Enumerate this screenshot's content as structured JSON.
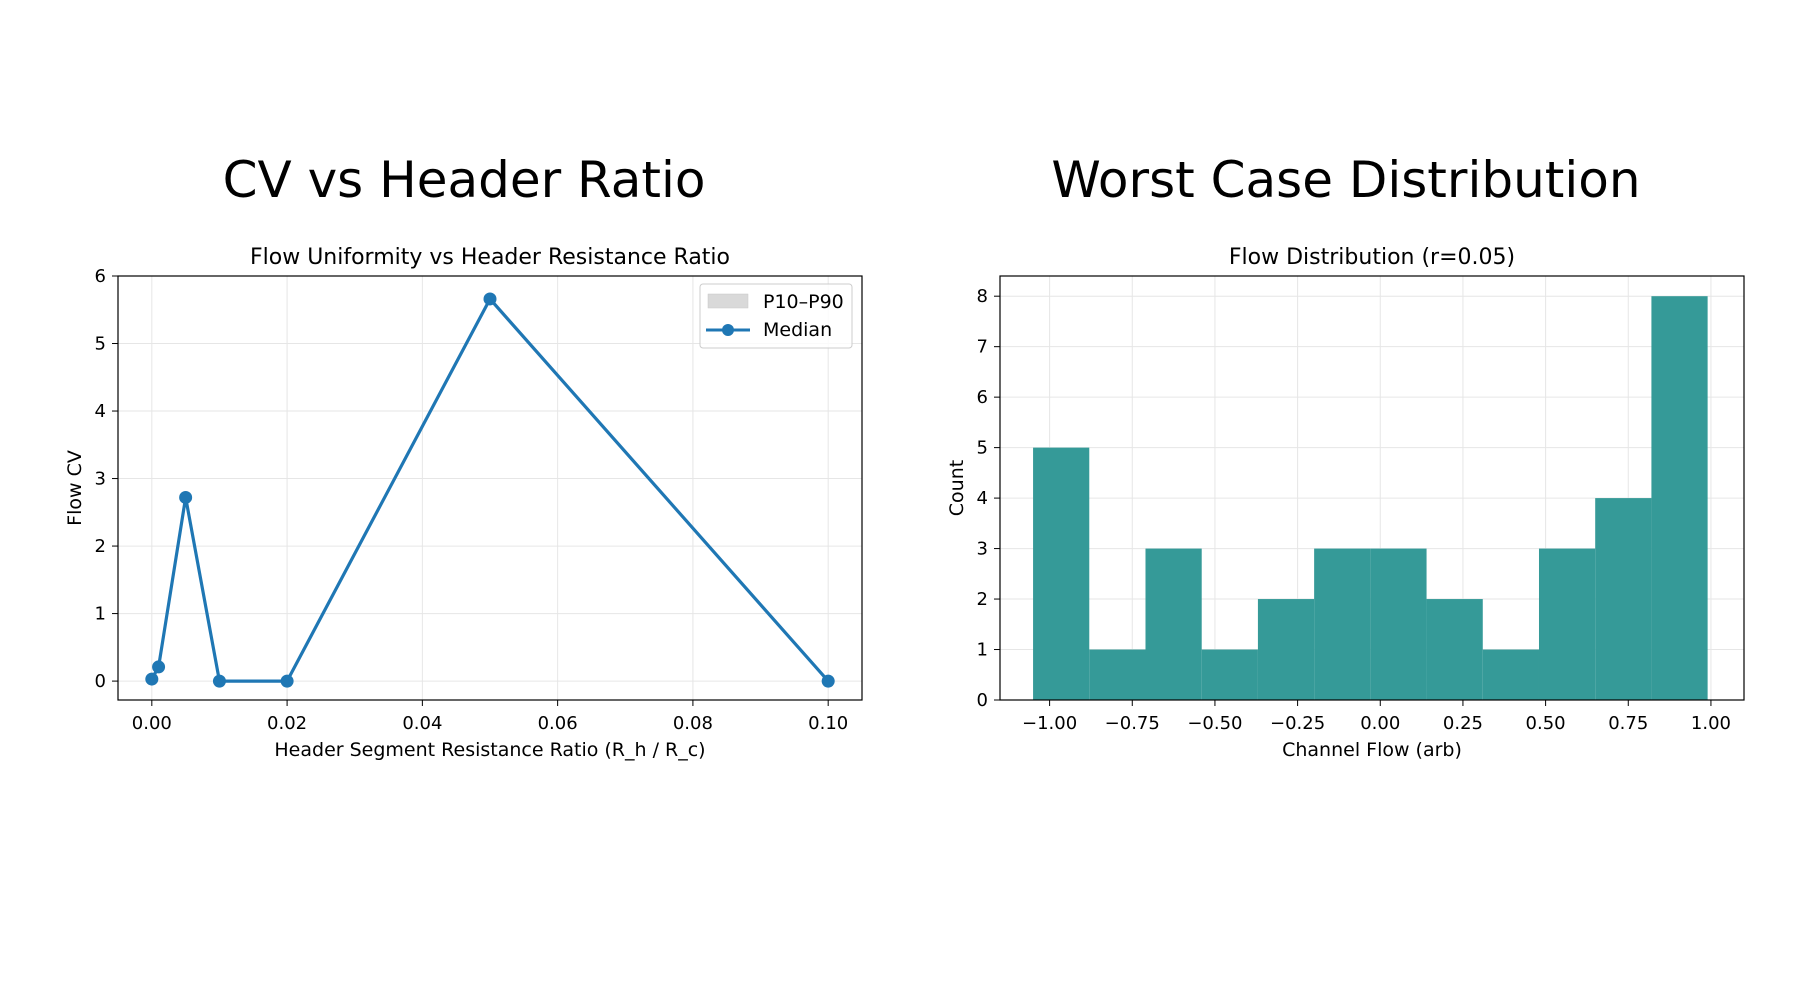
{
  "chart_data": [
    {
      "type": "line",
      "panel_title": "CV vs Header Ratio",
      "title": "Flow Uniformity vs Header Resistance Ratio",
      "xlabel": "Header Segment Resistance Ratio (R_h / R_c)",
      "ylabel": "Flow CV",
      "xlim": [
        -0.005,
        0.105
      ],
      "ylim": [
        -0.28,
        6.0
      ],
      "xticks": [
        0.0,
        0.02,
        0.04,
        0.06,
        0.08,
        0.1
      ],
      "xtick_labels": [
        "0.00",
        "0.02",
        "0.04",
        "0.06",
        "0.08",
        "0.10"
      ],
      "yticks": [
        0,
        1,
        2,
        3,
        4,
        5,
        6
      ],
      "ytick_labels": [
        "0",
        "1",
        "2",
        "3",
        "4",
        "5",
        "6"
      ],
      "grid": true,
      "legend_position": "top-right",
      "band": {
        "name": "P10–P90",
        "color": "#d9d9d9",
        "x": [
          0.0,
          0.001,
          0.005,
          0.01,
          0.02,
          0.05,
          0.1
        ],
        "lower": [
          0.02,
          0.2,
          2.7,
          0.0,
          0.0,
          5.62,
          0.0
        ],
        "upper": [
          0.04,
          0.23,
          2.73,
          0.01,
          0.01,
          5.7,
          0.01
        ]
      },
      "series": [
        {
          "name": "Median",
          "color": "#1f77b4",
          "x": [
            0.0,
            0.001,
            0.005,
            0.01,
            0.02,
            0.05,
            0.1
          ],
          "y": [
            0.03,
            0.21,
            2.72,
            0.0,
            0.0,
            5.66,
            0.0
          ]
        }
      ]
    },
    {
      "type": "bar",
      "panel_title": "Worst Case Distribution",
      "title": "Flow Distribution (r=0.05)",
      "xlabel": "Channel Flow (arb)",
      "ylabel": "Count",
      "xlim": [
        -1.15,
        1.1
      ],
      "ylim": [
        0,
        8.4
      ],
      "xticks": [
        -1.0,
        -0.75,
        -0.5,
        -0.25,
        0.0,
        0.25,
        0.5,
        0.75,
        1.0
      ],
      "xtick_labels": [
        "−1.00",
        "−0.75",
        "−0.50",
        "−0.25",
        "0.00",
        "0.25",
        "0.50",
        "0.75",
        "1.00"
      ],
      "yticks": [
        0,
        1,
        2,
        3,
        4,
        5,
        6,
        7,
        8
      ],
      "ytick_labels": [
        "0",
        "1",
        "2",
        "3",
        "4",
        "5",
        "6",
        "7",
        "8"
      ],
      "grid": true,
      "color": "#349a98",
      "bin_edges": [
        -1.05,
        -0.88,
        -0.71,
        -0.54,
        -0.37,
        -0.2,
        -0.03,
        0.14,
        0.31,
        0.48,
        0.65,
        0.82,
        0.99
      ],
      "values": [
        5,
        1,
        3,
        1,
        2,
        3,
        3,
        2,
        1,
        3,
        4,
        8
      ]
    }
  ]
}
